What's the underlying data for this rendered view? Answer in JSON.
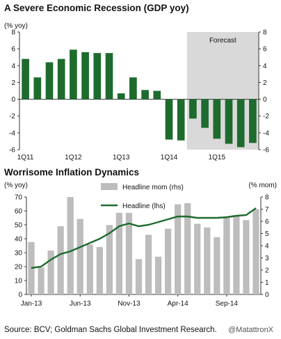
{
  "titles": {
    "top": "A Severe Economic Recession (GDP yoy)",
    "bottom": "Worrisome Inflation Dynamics"
  },
  "source": "Source: BCV; Goldman Sachs Global Investment Research.",
  "watermark": "@MatattronX",
  "colors": {
    "bar_green": "#1e6b2e",
    "bar_gray": "#bdbdbd",
    "line_green": "#1e6b2e",
    "forecast_bg": "#d9d9d9"
  },
  "chart_data": [
    {
      "type": "bar",
      "title": "A Severe Economic Recession (GDP yoy)",
      "ylabel": "(% yoy)",
      "ylim": [
        -6,
        8
      ],
      "yticks": [
        "8",
        "6",
        "4",
        "2",
        "0",
        "-2",
        "-4",
        "-6"
      ],
      "yticks_right": [
        "8",
        "6",
        "4",
        "2",
        "0",
        "-2",
        "-4",
        "-6"
      ],
      "x_tick_labels": [
        "1Q11",
        "1Q12",
        "1Q13",
        "1Q14",
        "1Q15"
      ],
      "x_tick_positions": [
        0,
        4,
        8,
        12,
        16
      ],
      "annotation": "Forecast",
      "forecast_start_index": 14,
      "categories": [
        "1Q11",
        "2Q11",
        "3Q11",
        "4Q11",
        "1Q12",
        "2Q12",
        "3Q12",
        "4Q12",
        "1Q13",
        "2Q13",
        "3Q13",
        "4Q13",
        "1Q14",
        "2Q14",
        "3Q14",
        "4Q14",
        "1Q15",
        "2Q15",
        "3Q15",
        "4Q15"
      ],
      "values": [
        4.8,
        2.6,
        4.4,
        4.8,
        5.9,
        5.6,
        5.5,
        5.5,
        0.7,
        2.6,
        1.1,
        1.0,
        -4.8,
        -4.9,
        -2.3,
        -3.4,
        -4.7,
        -5.3,
        -5.7,
        -5.2
      ]
    },
    {
      "type": "bar+line",
      "title": "Worrisome Inflation Dynamics",
      "ylabel_left": "(% yoy)",
      "ylabel_right": "(% mom)",
      "ylim_left": [
        0,
        70
      ],
      "ylim_right": [
        0,
        8
      ],
      "yticks_left": [
        "70",
        "60",
        "50",
        "40",
        "30",
        "20",
        "10",
        "0"
      ],
      "yticks_right": [
        "8",
        "7",
        "6",
        "5",
        "4",
        "3",
        "2",
        "1",
        "0"
      ],
      "x_tick_labels": [
        "Jan-13",
        "Jun-13",
        "Nov-13",
        "Apr-14",
        "Sep-14"
      ],
      "x_tick_positions": [
        0,
        5,
        10,
        15,
        20
      ],
      "legend_position": "top-center",
      "series": [
        {
          "name": "Headline mom (rhs)",
          "kind": "bar",
          "axis": "right",
          "values": [
            4.3,
            2.2,
            3.6,
            5.6,
            8.0,
            6.2,
            4.1,
            3.9,
            5.7,
            6.7,
            6.7,
            2.9,
            4.9,
            3.1,
            5.4,
            7.4,
            7.5,
            5.8,
            5.5,
            4.7,
            6.3,
            6.5,
            6.1,
            7.0
          ]
        },
        {
          "name": "Headline (lhs)",
          "kind": "line",
          "axis": "left",
          "values": [
            19.0,
            20.0,
            25.0,
            29.0,
            31.0,
            34.0,
            37.0,
            40.0,
            44.0,
            49.0,
            51.0,
            49.0,
            50.0,
            52.0,
            54.0,
            56.0,
            56.0,
            55.0,
            55.0,
            55.0,
            55.5,
            56.5,
            57.0,
            62.0
          ]
        }
      ]
    }
  ]
}
